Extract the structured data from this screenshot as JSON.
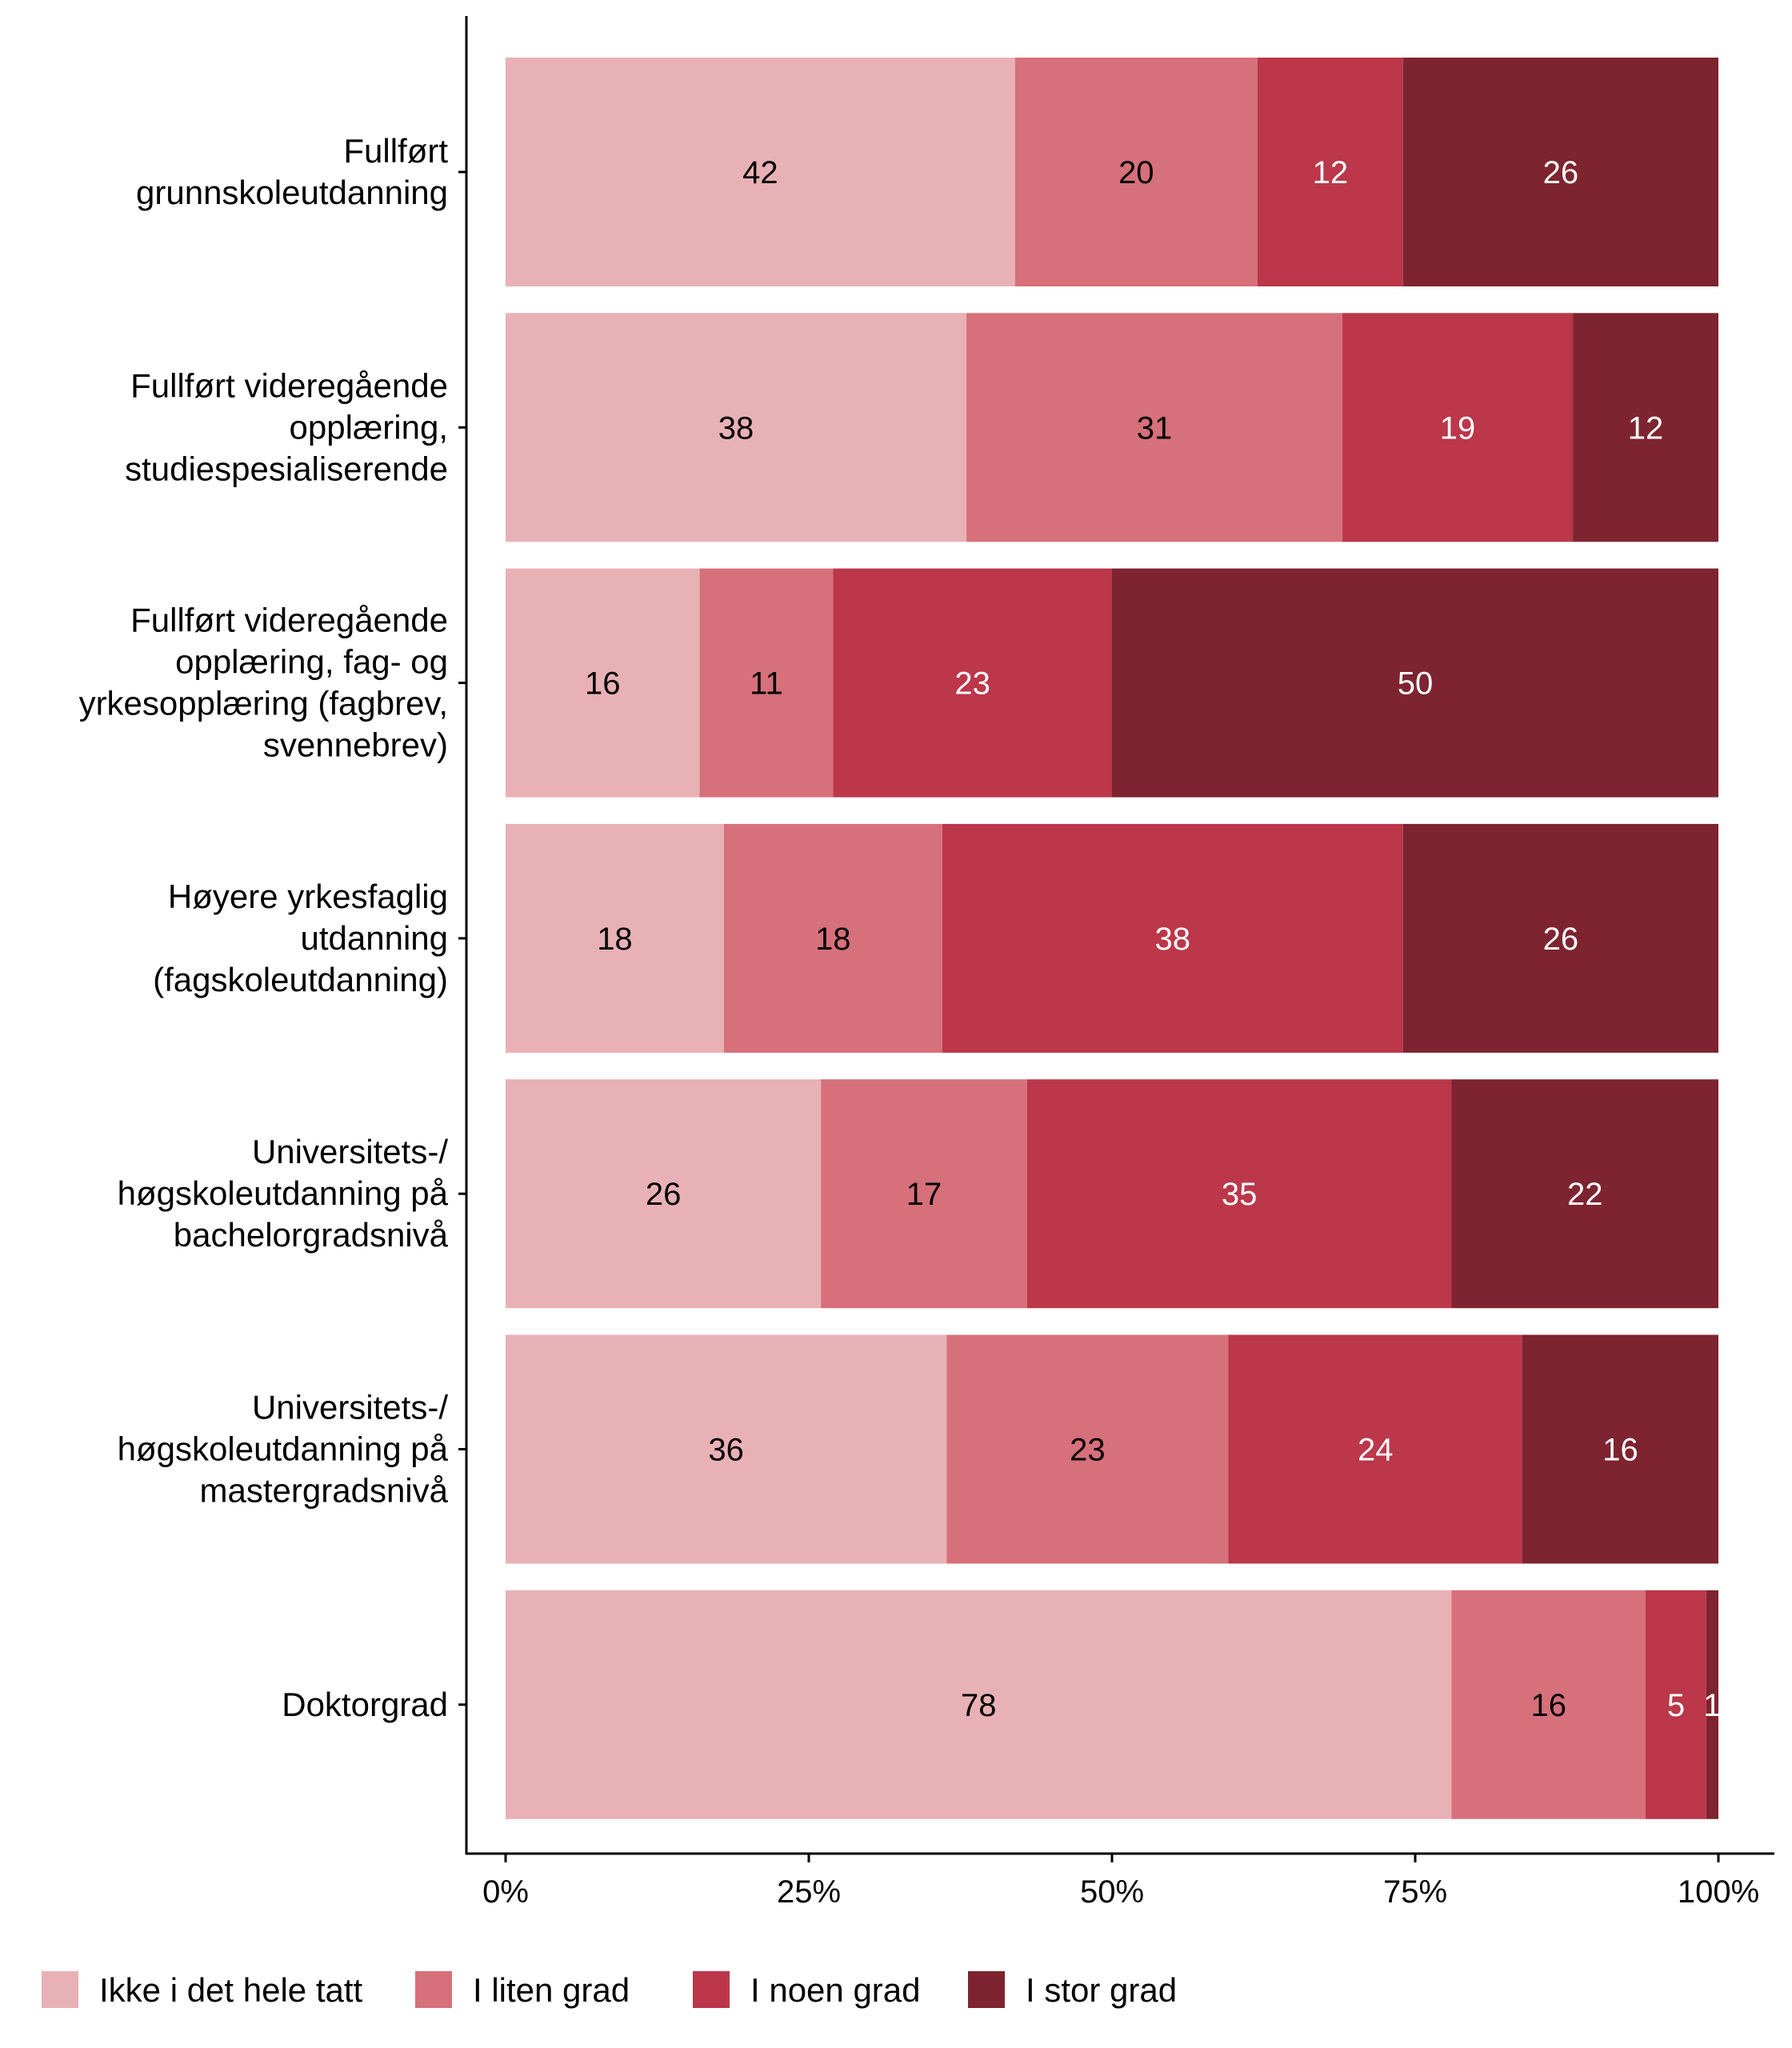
{
  "chart_data": {
    "type": "bar",
    "orientation": "horizontal",
    "stacked": "percent",
    "categories": [
      [
        "Fullført",
        "grunnskoleutdanning"
      ],
      [
        "Fullført videregående",
        "opplæring,",
        "studiespesialiserende"
      ],
      [
        "Fullført videregående",
        "opplæring, fag- og",
        "yrkesopplæring (fagbrev,",
        "svennebrev)"
      ],
      [
        "Høyere yrkesfaglig",
        "utdanning",
        "(fagskoleutdanning)"
      ],
      [
        "Universitets-/",
        "høgskoleutdanning på",
        "bachelorgradsnivå"
      ],
      [
        "Universitets-/",
        "høgskoleutdanning på",
        "mastergradsnivå"
      ],
      [
        "Doktorgrad"
      ]
    ],
    "series": [
      {
        "name": "Ikke i det hele tatt",
        "color": "#E8B1B6",
        "label_color": "#000000",
        "values": [
          42,
          38,
          16,
          18,
          26,
          36,
          78
        ]
      },
      {
        "name": "I liten grad",
        "color": "#D6707B",
        "label_color": "#000000",
        "values": [
          20,
          31,
          11,
          18,
          17,
          23,
          16
        ]
      },
      {
        "name": "I noen grad",
        "color": "#BB3749",
        "label_color": "#FFFFFF",
        "values": [
          12,
          19,
          23,
          38,
          35,
          24,
          5
        ]
      },
      {
        "name": "I stor grad",
        "color": "#7D2430",
        "label_color": "#FFFFFF",
        "values": [
          26,
          12,
          50,
          26,
          22,
          16,
          1
        ]
      }
    ],
    "x_ticks": [
      "0%",
      "25%",
      "50%",
      "75%",
      "100%"
    ],
    "xlim": [
      0,
      1
    ],
    "grid": false,
    "legend_position": "bottom"
  }
}
